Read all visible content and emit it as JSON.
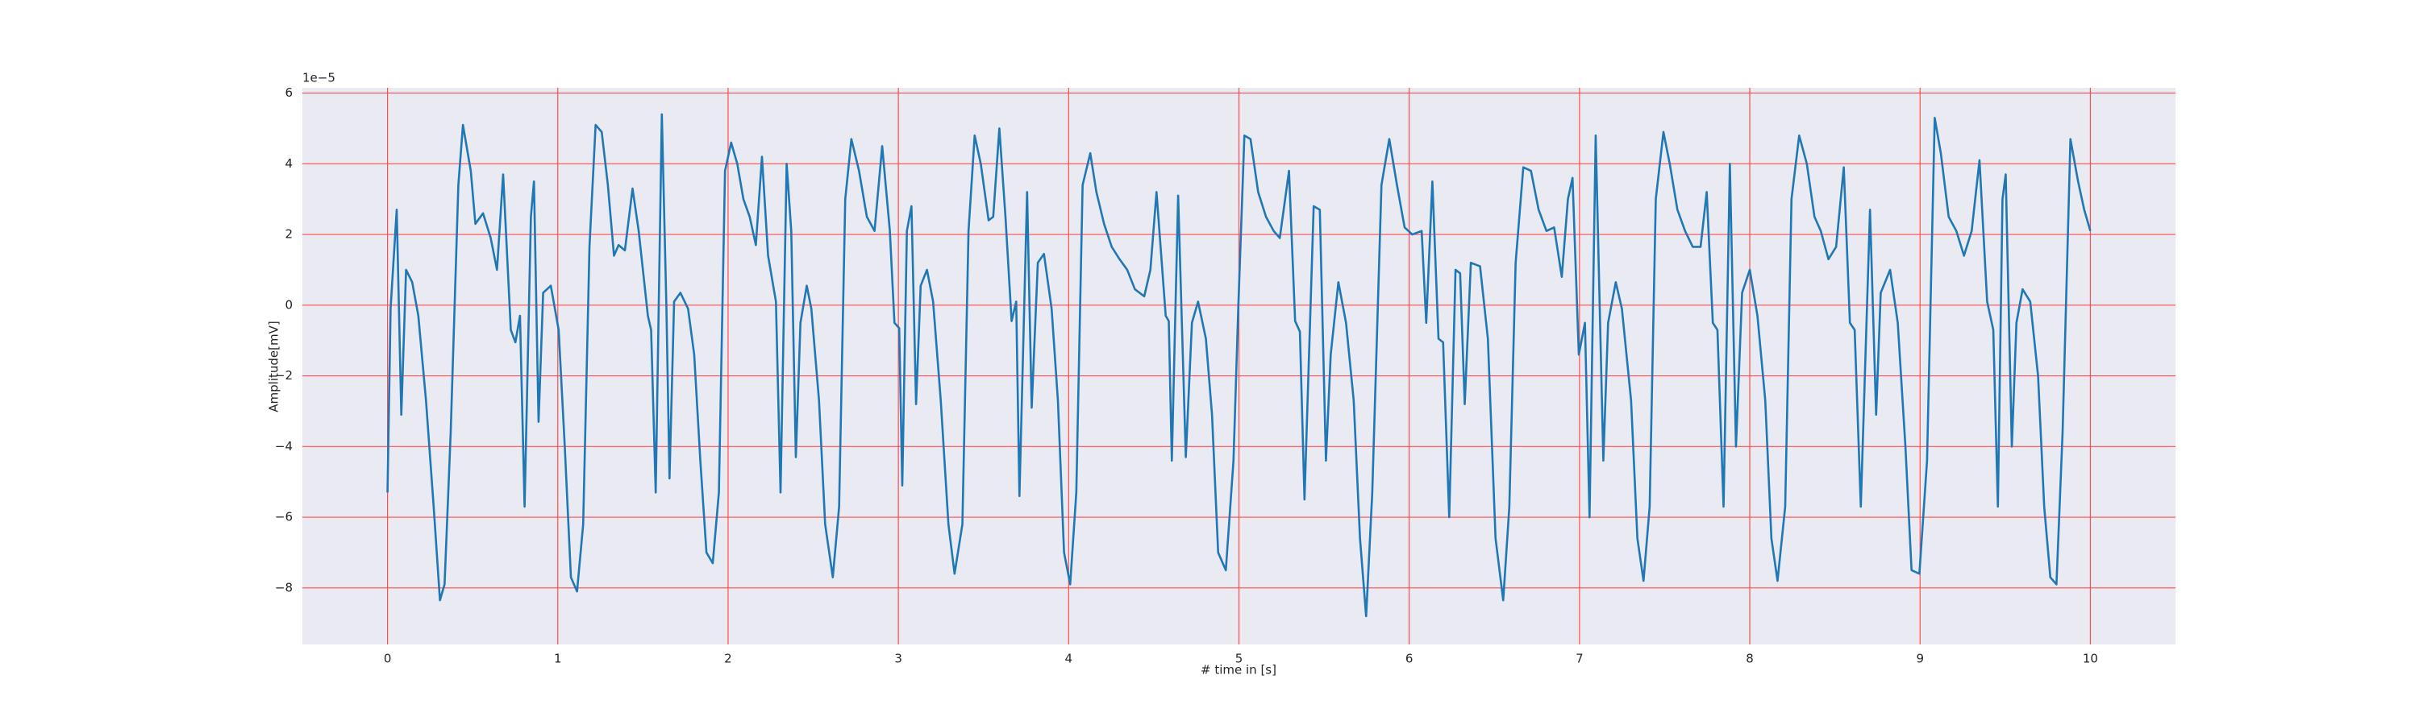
{
  "chart_data": {
    "type": "line",
    "xlabel": "# time in [s]",
    "ylabel": "Amplitude[mV]",
    "y_offset_text": "1e−5",
    "color": "#1f77b4",
    "background": "#eaeaf2",
    "grid": true,
    "grid_color": "#ff4d4d",
    "xlim": [
      -0.5,
      10.5
    ],
    "ylim": [
      -9.6,
      6.15
    ],
    "xticks": [
      0,
      1,
      2,
      3,
      4,
      5,
      6,
      7,
      8,
      9,
      10
    ],
    "yticks": [
      {
        "value": -8,
        "label": "−8"
      },
      {
        "value": -6,
        "label": "−6"
      },
      {
        "value": -4,
        "label": "−4"
      },
      {
        "value": -2,
        "label": "−2"
      },
      0,
      2,
      4,
      6
    ],
    "x": [
      0,
      0.018,
      0.054,
      0.081,
      0.109,
      0.145,
      0.181,
      0.226,
      0.271,
      0.308,
      0.335,
      0.371,
      0.416,
      0.443,
      0.489,
      0.516,
      0.561,
      0.606,
      0.643,
      0.679,
      0.724,
      0.751,
      0.778,
      0.805,
      0.842,
      0.86,
      0.887,
      0.914,
      0.959,
      1.005,
      1.041,
      1.077,
      1.113,
      1.149,
      1.186,
      1.222,
      1.258,
      1.294,
      1.33,
      1.357,
      1.394,
      1.439,
      1.475,
      1.529,
      1.548,
      1.575,
      1.611,
      1.638,
      1.656,
      1.683,
      1.72,
      1.765,
      1.801,
      1.837,
      1.873,
      1.91,
      1.946,
      1.982,
      2.018,
      2.054,
      2.09,
      2.127,
      2.163,
      2.199,
      2.235,
      2.281,
      2.308,
      2.344,
      2.371,
      2.398,
      2.425,
      2.462,
      2.489,
      2.534,
      2.57,
      2.615,
      2.652,
      2.688,
      2.724,
      2.769,
      2.815,
      2.86,
      2.905,
      2.95,
      2.977,
      3.005,
      3.023,
      3.05,
      3.077,
      3.104,
      3.131,
      3.168,
      3.204,
      3.249,
      3.294,
      3.33,
      3.376,
      3.412,
      3.448,
      3.484,
      3.53,
      3.557,
      3.593,
      3.629,
      3.665,
      3.692,
      3.711,
      3.756,
      3.783,
      3.819,
      3.855,
      3.9,
      3.937,
      3.973,
      4.009,
      4.045,
      4.082,
      4.127,
      4.163,
      4.208,
      4.253,
      4.299,
      4.344,
      4.389,
      4.444,
      4.48,
      4.516,
      4.57,
      4.588,
      4.606,
      4.643,
      4.688,
      4.724,
      4.76,
      4.806,
      4.842,
      4.878,
      4.923,
      4.968,
      4.996,
      5.032,
      5.068,
      5.113,
      5.159,
      5.204,
      5.24,
      5.294,
      5.33,
      5.358,
      5.385,
      5.439,
      5.475,
      5.511,
      5.539,
      5.584,
      5.629,
      5.674,
      5.711,
      5.747,
      5.783,
      5.837,
      5.883,
      5.928,
      5.973,
      6.018,
      6.073,
      6.1,
      6.136,
      6.172,
      6.199,
      6.235,
      6.272,
      6.299,
      6.326,
      6.362,
      6.416,
      6.462,
      6.507,
      6.552,
      6.588,
      6.625,
      6.67,
      6.715,
      6.76,
      6.806,
      6.851,
      6.896,
      6.932,
      6.959,
      6.996,
      7.032,
      7.059,
      7.095,
      7.14,
      7.168,
      7.213,
      7.249,
      7.303,
      7.34,
      7.376,
      7.412,
      7.448,
      7.493,
      7.53,
      7.575,
      7.62,
      7.665,
      7.711,
      7.747,
      7.783,
      7.81,
      7.846,
      7.883,
      7.919,
      7.955,
      8.0,
      8.045,
      8.091,
      8.127,
      8.163,
      8.208,
      8.245,
      8.29,
      8.335,
      8.38,
      8.417,
      8.462,
      8.507,
      8.552,
      8.588,
      8.616,
      8.652,
      8.706,
      8.742,
      8.769,
      8.824,
      8.869,
      8.914,
      8.95,
      8.996,
      9.041,
      9.086,
      9.122,
      9.168,
      9.213,
      9.258,
      9.303,
      9.349,
      9.394,
      9.43,
      9.457,
      9.484,
      9.503,
      9.539,
      9.566,
      9.602,
      9.647,
      9.693,
      9.729,
      9.765,
      9.801,
      9.837,
      9.883,
      9.928,
      9.964,
      10.0
    ],
    "values": [
      -5.3,
      -0.1,
      2.7,
      -3.1,
      1.0,
      0.65,
      -0.3,
      -2.7,
      -5.7,
      -8.35,
      -7.9,
      -3.6,
      3.4,
      5.1,
      3.8,
      2.3,
      2.6,
      1.9,
      1.0,
      3.7,
      -0.7,
      -1.05,
      -0.3,
      -5.7,
      2.5,
      3.5,
      -3.3,
      0.35,
      0.55,
      -0.7,
      -4.0,
      -7.7,
      -8.1,
      -6.2,
      1.65,
      5.1,
      4.9,
      3.4,
      1.4,
      1.7,
      1.55,
      3.3,
      2.1,
      -0.3,
      -0.7,
      -5.3,
      5.4,
      -0.1,
      -4.9,
      0.1,
      0.35,
      -0.1,
      -1.4,
      -4.4,
      -7.0,
      -7.3,
      -5.3,
      3.8,
      4.6,
      4.0,
      3.0,
      2.5,
      1.7,
      4.2,
      1.4,
      0.1,
      -5.3,
      4.0,
      2.1,
      -4.3,
      -0.5,
      0.55,
      -0.1,
      -2.7,
      -6.2,
      -7.7,
      -5.7,
      3.0,
      4.7,
      3.8,
      2.5,
      2.1,
      4.5,
      2.1,
      -0.5,
      -0.65,
      -5.1,
      2.1,
      2.8,
      -2.8,
      0.55,
      1.0,
      0.1,
      -2.7,
      -6.2,
      -7.6,
      -6.2,
      2.1,
      4.8,
      4.0,
      2.4,
      2.5,
      5.0,
      2.5,
      -0.45,
      0.1,
      -5.4,
      3.2,
      -2.9,
      1.2,
      1.45,
      -0.1,
      -2.7,
      -7.0,
      -7.9,
      -5.3,
      3.4,
      4.3,
      3.2,
      2.3,
      1.65,
      1.3,
      1.0,
      0.45,
      0.25,
      1.0,
      3.2,
      -0.3,
      -0.45,
      -4.4,
      3.1,
      -4.3,
      -0.5,
      0.1,
      -0.95,
      -3.1,
      -7.0,
      -7.5,
      -4.4,
      -0.1,
      4.8,
      4.7,
      3.2,
      2.5,
      2.1,
      1.9,
      3.8,
      -0.45,
      -0.75,
      -5.5,
      2.8,
      2.7,
      -4.4,
      -1.4,
      0.65,
      -0.5,
      -2.7,
      -6.6,
      -8.8,
      -5.3,
      3.4,
      4.7,
      3.4,
      2.2,
      2.0,
      2.1,
      -0.5,
      3.5,
      -0.95,
      -1.05,
      -6.0,
      1.0,
      0.9,
      -2.8,
      1.2,
      1.1,
      -0.95,
      -6.6,
      -8.35,
      -5.7,
      1.2,
      3.9,
      3.8,
      2.7,
      2.1,
      2.2,
      0.8,
      3.0,
      3.6,
      -1.4,
      -0.5,
      -6.0,
      4.8,
      -4.4,
      -0.5,
      0.65,
      -0.1,
      -2.7,
      -6.6,
      -7.8,
      -5.7,
      3.0,
      4.9,
      4.0,
      2.7,
      2.1,
      1.65,
      1.65,
      3.2,
      -0.5,
      -0.7,
      -5.7,
      4.0,
      -4.0,
      0.35,
      1.0,
      -0.3,
      -2.7,
      -6.6,
      -7.8,
      -5.7,
      3.0,
      4.8,
      4.0,
      2.5,
      2.1,
      1.3,
      1.65,
      3.9,
      -0.5,
      -0.7,
      -5.7,
      2.7,
      -3.1,
      0.35,
      1.0,
      -0.5,
      -4.0,
      -7.5,
      -7.6,
      -4.4,
      5.3,
      4.3,
      2.5,
      2.1,
      1.4,
      2.1,
      4.1,
      0.1,
      -0.7,
      -5.7,
      3.0,
      3.7,
      -4.0,
      -0.5,
      0.45,
      0.1,
      -2.0,
      -5.7,
      -7.7,
      -7.9,
      -3.6,
      4.7,
      3.5,
      2.7,
      2.1
    ]
  }
}
